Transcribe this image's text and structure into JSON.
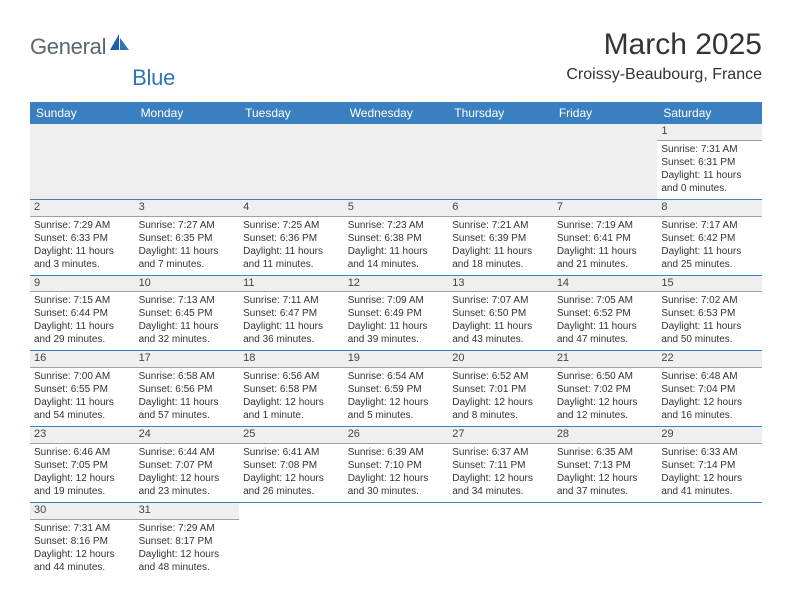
{
  "brand": {
    "text1": "General",
    "text2": "Blue"
  },
  "title": "March 2025",
  "location": "Croissy-Beaubourg, France",
  "colors": {
    "header_bg": "#3a80c0",
    "header_text": "#ffffff",
    "row_divider": "#3a80c0",
    "daynum_bg": "#efefef",
    "logo_gray": "#5a6770",
    "logo_blue": "#2f76b5",
    "page_bg": "#ffffff"
  },
  "day_headers": [
    "Sunday",
    "Monday",
    "Tuesday",
    "Wednesday",
    "Thursday",
    "Friday",
    "Saturday"
  ],
  "weeks": [
    [
      null,
      null,
      null,
      null,
      null,
      null,
      {
        "n": "1",
        "sunrise": "7:31 AM",
        "sunset": "6:31 PM",
        "daylight": "11 hours and 0 minutes."
      }
    ],
    [
      {
        "n": "2",
        "sunrise": "7:29 AM",
        "sunset": "6:33 PM",
        "daylight": "11 hours and 3 minutes."
      },
      {
        "n": "3",
        "sunrise": "7:27 AM",
        "sunset": "6:35 PM",
        "daylight": "11 hours and 7 minutes."
      },
      {
        "n": "4",
        "sunrise": "7:25 AM",
        "sunset": "6:36 PM",
        "daylight": "11 hours and 11 minutes."
      },
      {
        "n": "5",
        "sunrise": "7:23 AM",
        "sunset": "6:38 PM",
        "daylight": "11 hours and 14 minutes."
      },
      {
        "n": "6",
        "sunrise": "7:21 AM",
        "sunset": "6:39 PM",
        "daylight": "11 hours and 18 minutes."
      },
      {
        "n": "7",
        "sunrise": "7:19 AM",
        "sunset": "6:41 PM",
        "daylight": "11 hours and 21 minutes."
      },
      {
        "n": "8",
        "sunrise": "7:17 AM",
        "sunset": "6:42 PM",
        "daylight": "11 hours and 25 minutes."
      }
    ],
    [
      {
        "n": "9",
        "sunrise": "7:15 AM",
        "sunset": "6:44 PM",
        "daylight": "11 hours and 29 minutes."
      },
      {
        "n": "10",
        "sunrise": "7:13 AM",
        "sunset": "6:45 PM",
        "daylight": "11 hours and 32 minutes."
      },
      {
        "n": "11",
        "sunrise": "7:11 AM",
        "sunset": "6:47 PM",
        "daylight": "11 hours and 36 minutes."
      },
      {
        "n": "12",
        "sunrise": "7:09 AM",
        "sunset": "6:49 PM",
        "daylight": "11 hours and 39 minutes."
      },
      {
        "n": "13",
        "sunrise": "7:07 AM",
        "sunset": "6:50 PM",
        "daylight": "11 hours and 43 minutes."
      },
      {
        "n": "14",
        "sunrise": "7:05 AM",
        "sunset": "6:52 PM",
        "daylight": "11 hours and 47 minutes."
      },
      {
        "n": "15",
        "sunrise": "7:02 AM",
        "sunset": "6:53 PM",
        "daylight": "11 hours and 50 minutes."
      }
    ],
    [
      {
        "n": "16",
        "sunrise": "7:00 AM",
        "sunset": "6:55 PM",
        "daylight": "11 hours and 54 minutes."
      },
      {
        "n": "17",
        "sunrise": "6:58 AM",
        "sunset": "6:56 PM",
        "daylight": "11 hours and 57 minutes."
      },
      {
        "n": "18",
        "sunrise": "6:56 AM",
        "sunset": "6:58 PM",
        "daylight": "12 hours and 1 minute."
      },
      {
        "n": "19",
        "sunrise": "6:54 AM",
        "sunset": "6:59 PM",
        "daylight": "12 hours and 5 minutes."
      },
      {
        "n": "20",
        "sunrise": "6:52 AM",
        "sunset": "7:01 PM",
        "daylight": "12 hours and 8 minutes."
      },
      {
        "n": "21",
        "sunrise": "6:50 AM",
        "sunset": "7:02 PM",
        "daylight": "12 hours and 12 minutes."
      },
      {
        "n": "22",
        "sunrise": "6:48 AM",
        "sunset": "7:04 PM",
        "daylight": "12 hours and 16 minutes."
      }
    ],
    [
      {
        "n": "23",
        "sunrise": "6:46 AM",
        "sunset": "7:05 PM",
        "daylight": "12 hours and 19 minutes."
      },
      {
        "n": "24",
        "sunrise": "6:44 AM",
        "sunset": "7:07 PM",
        "daylight": "12 hours and 23 minutes."
      },
      {
        "n": "25",
        "sunrise": "6:41 AM",
        "sunset": "7:08 PM",
        "daylight": "12 hours and 26 minutes."
      },
      {
        "n": "26",
        "sunrise": "6:39 AM",
        "sunset": "7:10 PM",
        "daylight": "12 hours and 30 minutes."
      },
      {
        "n": "27",
        "sunrise": "6:37 AM",
        "sunset": "7:11 PM",
        "daylight": "12 hours and 34 minutes."
      },
      {
        "n": "28",
        "sunrise": "6:35 AM",
        "sunset": "7:13 PM",
        "daylight": "12 hours and 37 minutes."
      },
      {
        "n": "29",
        "sunrise": "6:33 AM",
        "sunset": "7:14 PM",
        "daylight": "12 hours and 41 minutes."
      }
    ],
    [
      {
        "n": "30",
        "sunrise": "7:31 AM",
        "sunset": "8:16 PM",
        "daylight": "12 hours and 44 minutes."
      },
      {
        "n": "31",
        "sunrise": "7:29 AM",
        "sunset": "8:17 PM",
        "daylight": "12 hours and 48 minutes."
      },
      null,
      null,
      null,
      null,
      null
    ]
  ],
  "labels": {
    "sunrise": "Sunrise:",
    "sunset": "Sunset:",
    "daylight": "Daylight:"
  }
}
